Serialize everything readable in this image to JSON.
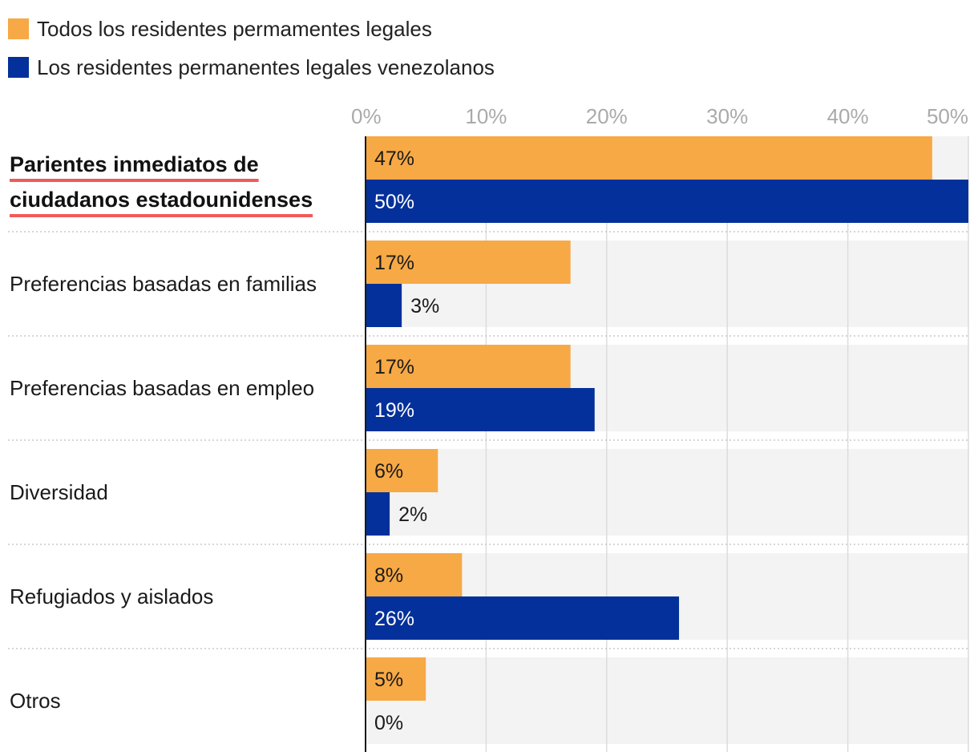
{
  "legend": {
    "all_label": "Todos los residentes permamentes legales",
    "ven_label": "Los residentes permanentes legales venezolanos"
  },
  "colors": {
    "all": "#f7a945",
    "ven": "#03309a",
    "highlight": "#f05a5a"
  },
  "chart_data": {
    "type": "bar",
    "orientation": "horizontal",
    "title": "",
    "xlabel": "",
    "ylabel": "",
    "xlim": [
      0,
      50
    ],
    "ticks": [
      0,
      10,
      20,
      30,
      40,
      50
    ],
    "tick_labels": [
      "0%",
      "10%",
      "20%",
      "30%",
      "40%",
      "50%"
    ],
    "grid": true,
    "legend_position": "top-left",
    "categories": [
      "Parientes inmediatos de ciudadanos estadounidenses",
      "Preferencias basadas en familias",
      "Preferencias basadas en empleo",
      "Diversidad",
      "Refugiados y aislados",
      "Otros"
    ],
    "highlighted_category_index": 0,
    "series": [
      {
        "name": "Todos los residentes permamentes legales",
        "key": "all",
        "values": [
          47,
          17,
          17,
          6,
          8,
          5
        ],
        "labels": [
          "47%",
          "17%",
          "17%",
          "6%",
          "8%",
          "5%"
        ]
      },
      {
        "name": "Los residentes permanentes legales venezolanos",
        "key": "ven",
        "values": [
          50,
          3,
          19,
          2,
          26,
          0
        ],
        "labels": [
          "50%",
          "3%",
          "19%",
          "2%",
          "26%",
          "0%"
        ]
      }
    ]
  }
}
